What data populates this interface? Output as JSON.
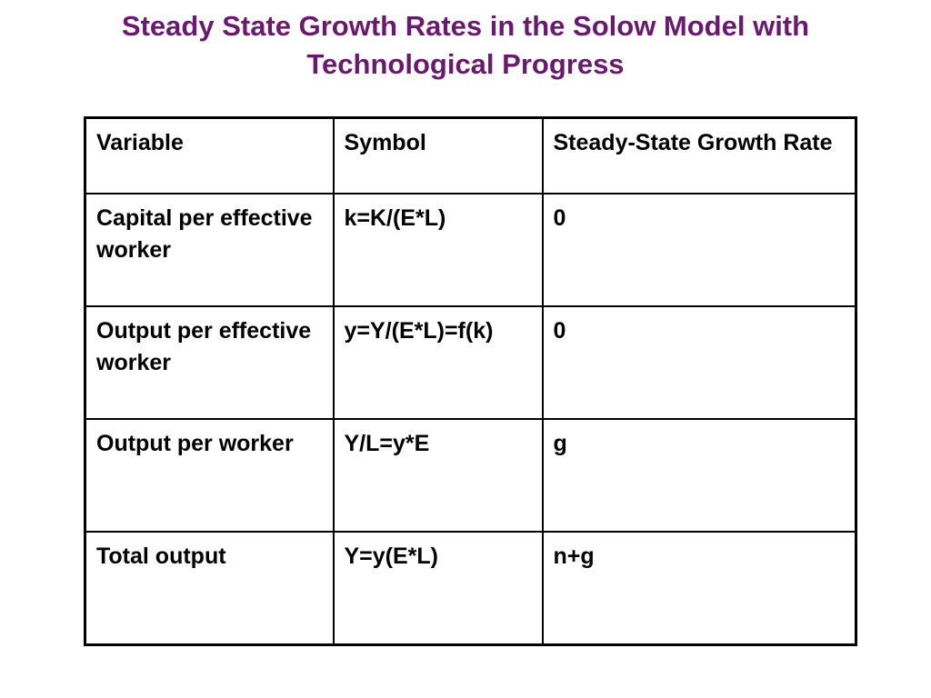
{
  "title": {
    "line1": "Steady State Growth Rates in the Solow Model with",
    "line2": "Technological Progress"
  },
  "colors": {
    "title": "#6a1a6e",
    "text": "#000000",
    "border": "#000000"
  },
  "table": {
    "headers": [
      "Variable",
      "Symbol",
      "Steady-State Growth Rate"
    ],
    "rows": [
      [
        "Capital per effective worker",
        "k=K/(E*L)",
        "0"
      ],
      [
        "Output per effective worker",
        "y=Y/(E*L)=f(k)",
        "0"
      ],
      [
        "Output per worker",
        "Y/L=y*E",
        "g"
      ],
      [
        "Total output",
        "Y=y(E*L)",
        "n+g"
      ]
    ]
  }
}
